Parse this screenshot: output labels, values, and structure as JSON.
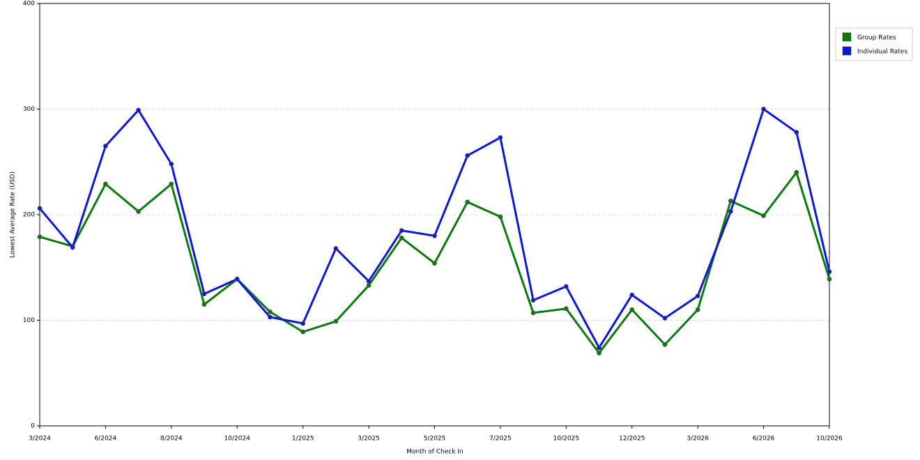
{
  "chart_data": {
    "type": "line",
    "x_label": "Month of Check In",
    "y_label": "Lowest Average Rate (USD)",
    "categories": [
      "3/2024",
      null,
      "6/2024",
      null,
      "8/2024",
      null,
      "10/2024",
      null,
      "1/2025",
      null,
      "3/2025",
      null,
      "5/2025",
      null,
      "7/2025",
      null,
      "10/2025",
      null,
      "12/2025",
      null,
      "3/2026",
      null,
      "6/2026",
      null,
      "10/2026"
    ],
    "series": [
      {
        "name": "Group Rates",
        "color": "#0a7a0a",
        "values": [
          179,
          170,
          229,
          203,
          229,
          115,
          139,
          108,
          89,
          99,
          133,
          178,
          154,
          212,
          198,
          107,
          111,
          69,
          110,
          77,
          110,
          213,
          199,
          240,
          139
        ]
      },
      {
        "name": "Individual Rates",
        "color": "#0b16d6",
        "values": [
          206,
          169,
          265,
          299,
          248,
          125,
          139,
          103,
          97,
          168,
          137,
          185,
          180,
          256,
          273,
          119,
          132,
          74,
          124,
          102,
          123,
          203,
          300,
          278,
          146
        ]
      }
    ],
    "ylim": [
      0,
      400
    ],
    "yticks": [
      0,
      100,
      200,
      300,
      400
    ],
    "grid": true,
    "legend": "right"
  }
}
